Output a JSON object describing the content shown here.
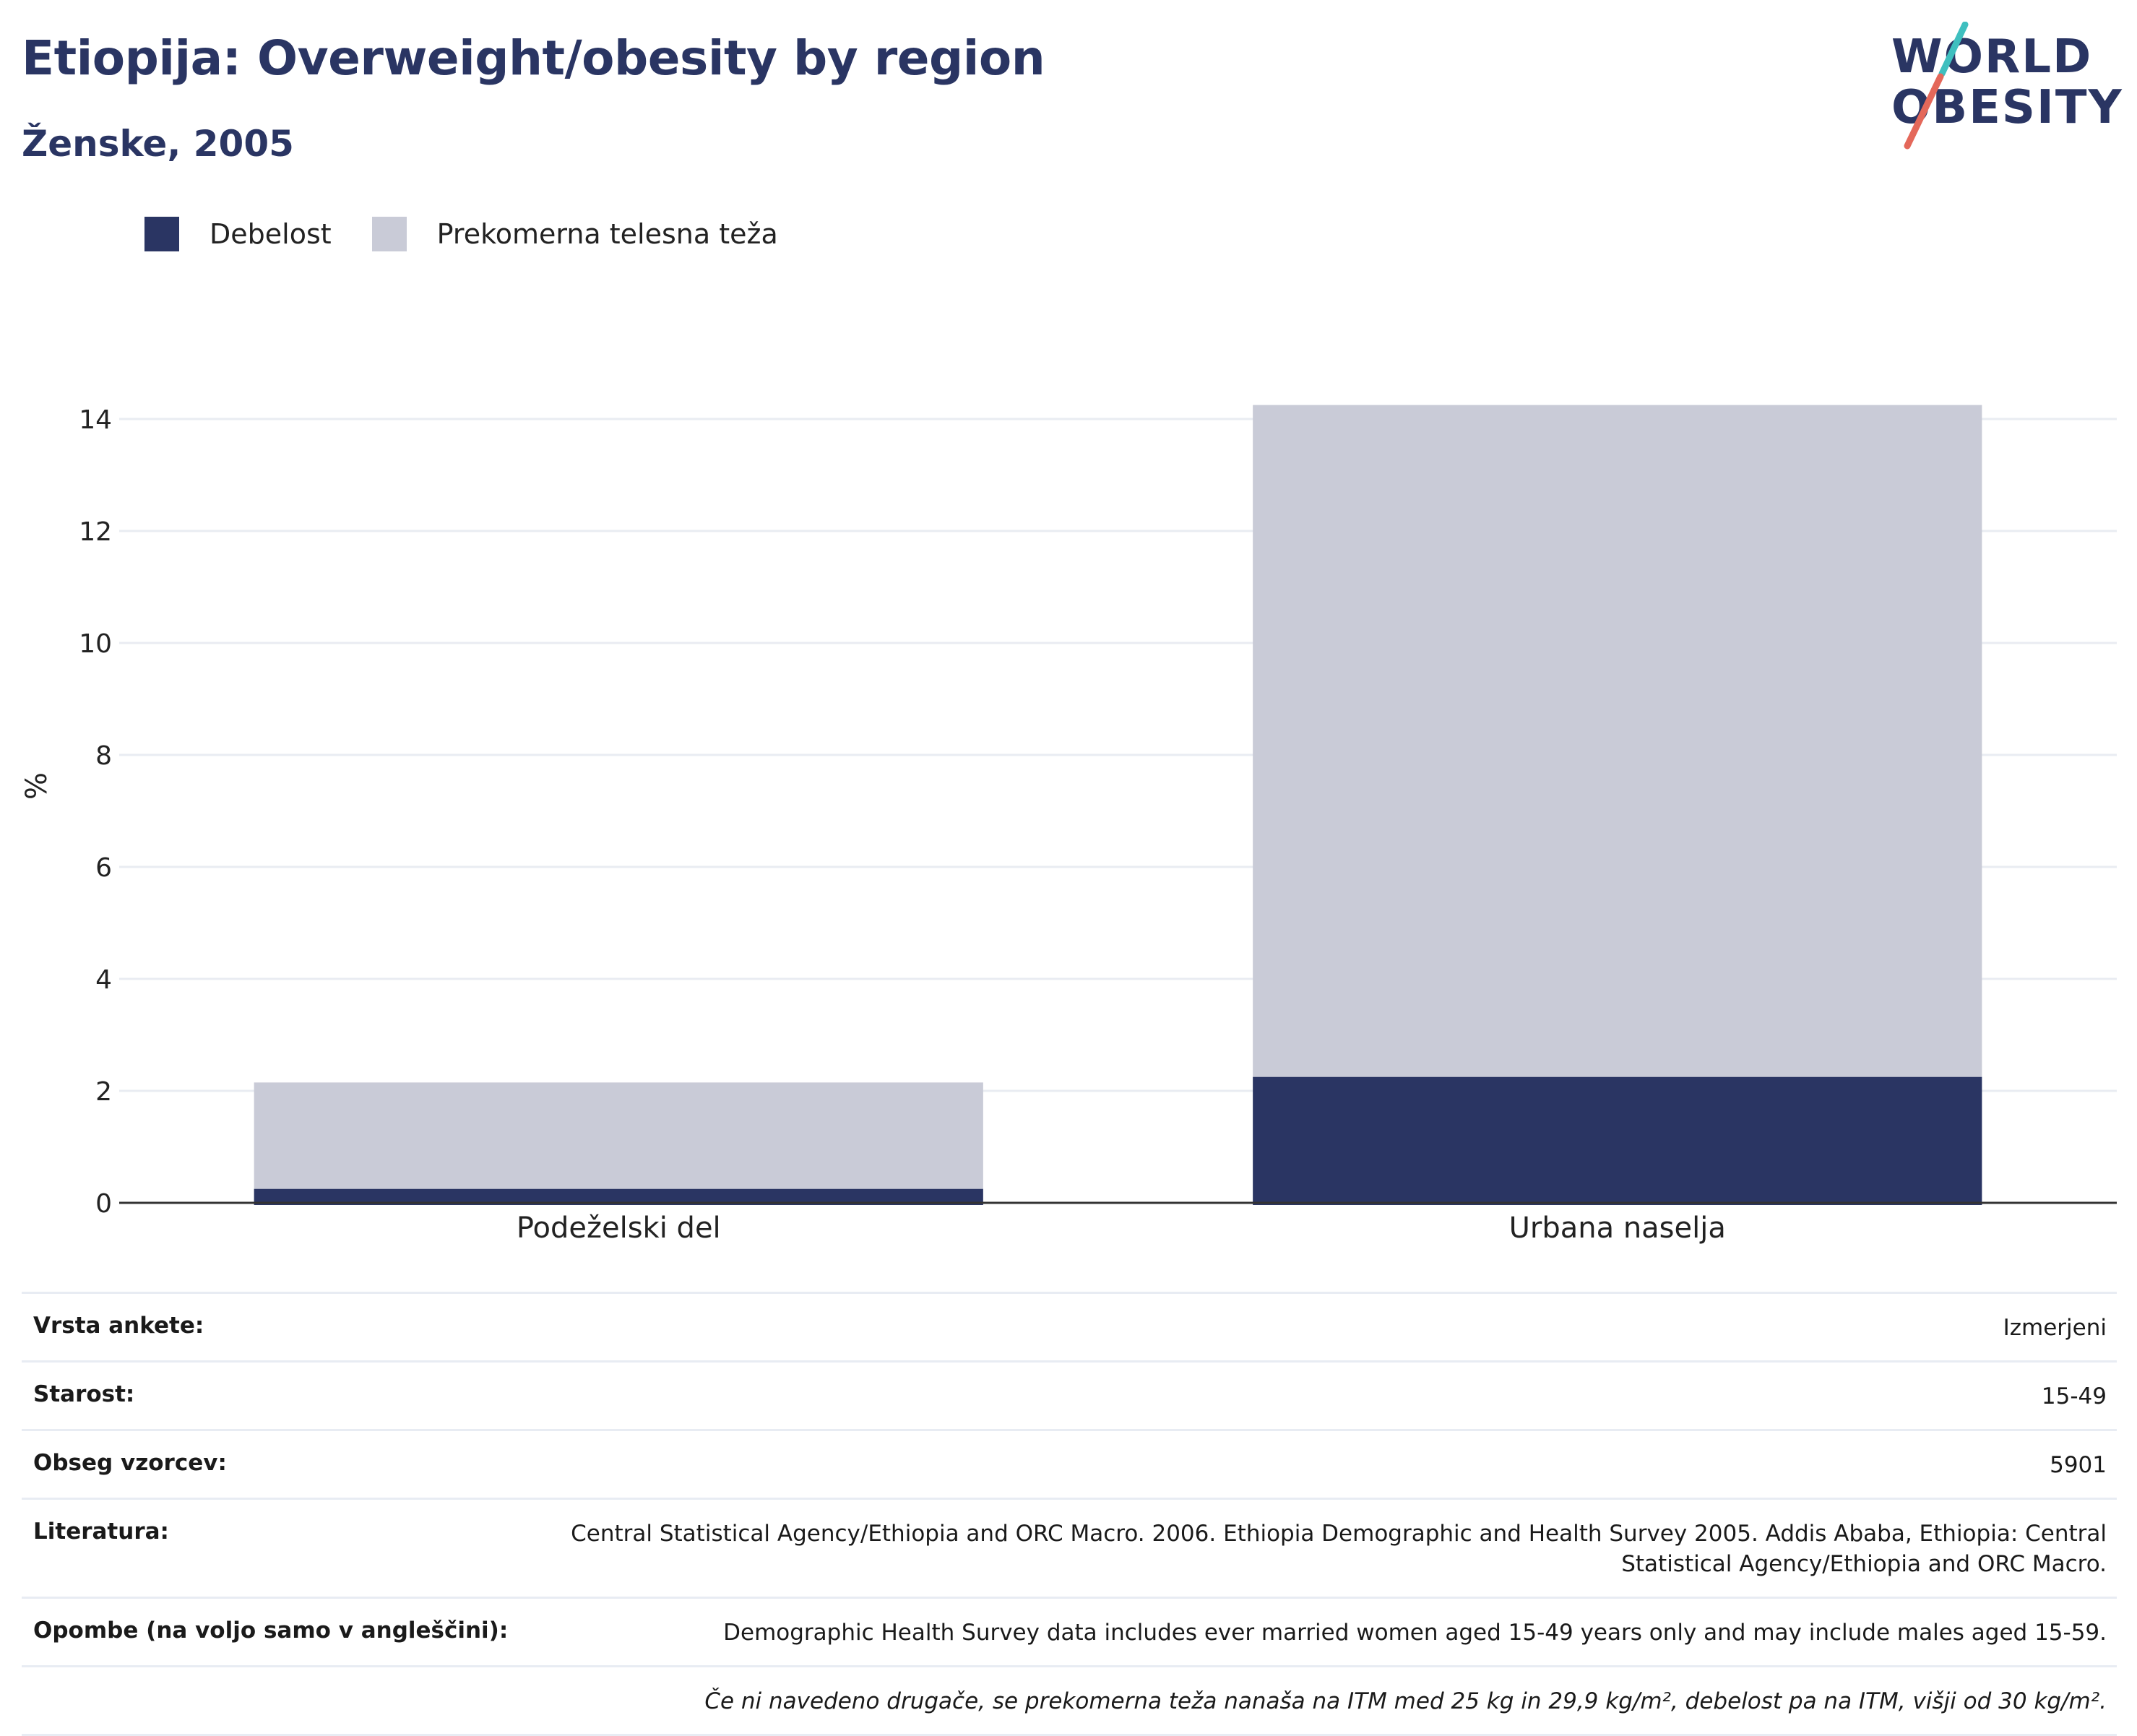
{
  "header": {
    "title": "Etiopija: Overweight/obesity by region",
    "subtitle": "Ženske, 2005"
  },
  "logo": {
    "line1": "WORLD",
    "line2": "OBESITY",
    "text": "WORLD OBESITY"
  },
  "colors": {
    "obesity": "#2a3563",
    "overweight": "#c9cbd7",
    "title": "#2a3563",
    "logo_teal": "#3fbfbf",
    "logo_red": "#e4685a",
    "grid": "#e9ecf2",
    "axis": "#333333"
  },
  "chart_data": {
    "type": "bar",
    "stacked": true,
    "categories": [
      "Podeželski del",
      "Urbana naselja"
    ],
    "series": [
      {
        "name": "Debelost",
        "color": "#2a3563",
        "values": [
          0.25,
          2.25
        ]
      },
      {
        "name": "Prekomerna telesna teža",
        "color": "#c9cbd7",
        "values": [
          1.9,
          12.0
        ]
      }
    ],
    "totals": [
      2.15,
      14.25
    ],
    "ylabel": "%",
    "ylim": [
      0,
      14.5
    ],
    "yticks": [
      0,
      2,
      4,
      6,
      8,
      10,
      12,
      14
    ],
    "ytick_labels": [
      "0",
      "2",
      "4",
      "6",
      "8",
      "10",
      "12",
      "14"
    ],
    "grid": true,
    "legend_position": "top-left"
  },
  "info": {
    "rows": [
      {
        "label": "Vrsta ankete:",
        "value": "Izmerjeni"
      },
      {
        "label": "Starost:",
        "value": "15-49"
      },
      {
        "label": "Obseg vzorcev:",
        "value": "5901"
      },
      {
        "label": "Literatura:",
        "value": "Central Statistical Agency/Ethiopia and ORC Macro. 2006. Ethiopia Demographic and Health Survey 2005. Addis Ababa, Ethiopia: Central Statistical Agency/Ethiopia and ORC Macro."
      },
      {
        "label": "Opombe (na voljo samo v angleščini):",
        "value": "Demographic Health Survey data includes ever married women aged 15-49 years only and may include males aged 15-59."
      }
    ],
    "footnote": "Če ni navedeno drugače, se prekomerna teža nanaša na ITM med 25 kg in 29,9 kg/m², debelost pa na ITM, višji od 30 kg/m²."
  }
}
